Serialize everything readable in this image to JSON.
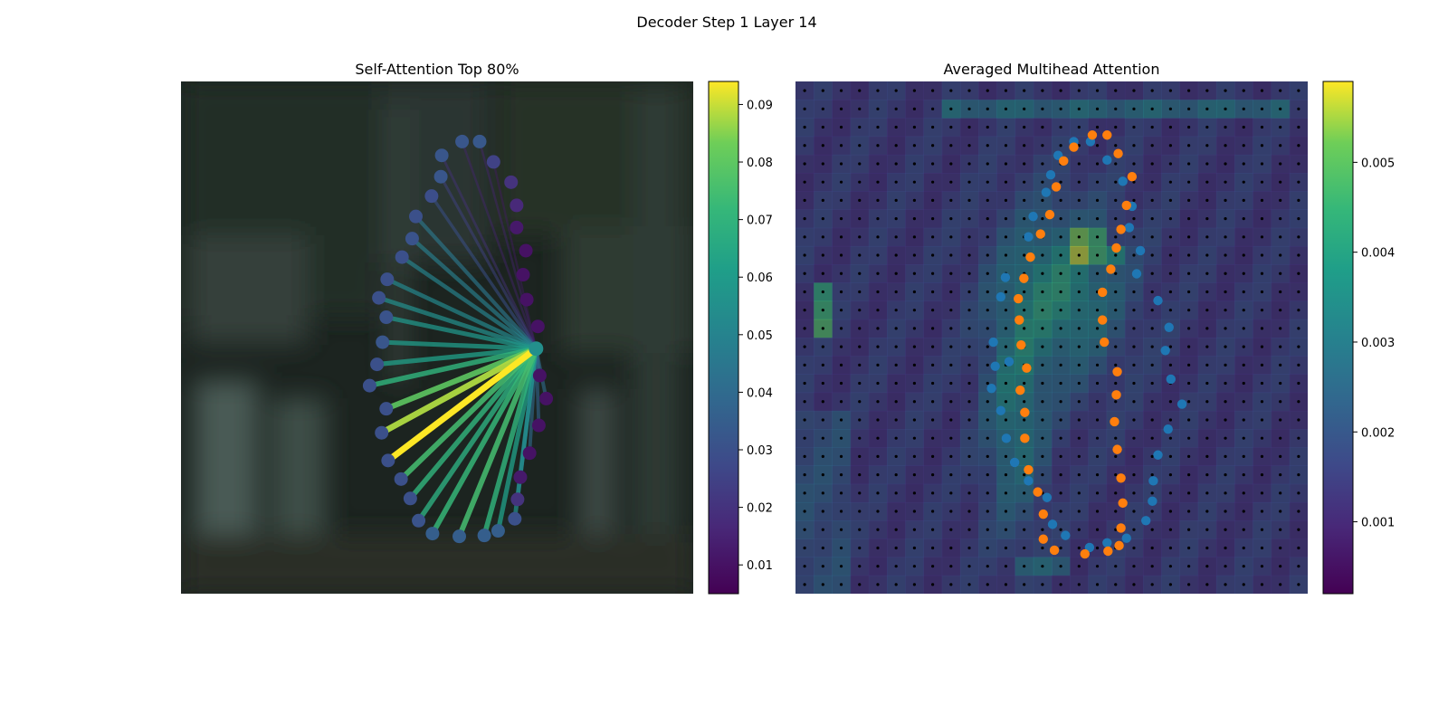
{
  "figure": {
    "suptitle": "Decoder Step 1 Layer 14"
  },
  "chart_data": [
    {
      "type": "scatter",
      "title": "Self-Attention Top 80%",
      "description_points": "contour keypoints with attention lines from one query point",
      "points": [
        [
          500,
          153
        ],
        [
          519,
          153
        ],
        [
          534,
          175
        ],
        [
          478,
          168
        ],
        [
          553,
          197
        ],
        [
          477,
          191
        ],
        [
          559,
          222
        ],
        [
          467,
          212
        ],
        [
          559,
          246
        ],
        [
          450,
          234
        ],
        [
          569,
          271
        ],
        [
          446,
          258
        ],
        [
          566,
          297
        ],
        [
          435,
          278
        ],
        [
          570,
          324
        ],
        [
          419,
          302
        ],
        [
          582,
          353
        ],
        [
          410,
          322
        ],
        [
          418,
          343
        ],
        [
          580,
          377
        ],
        [
          414,
          370
        ],
        [
          408,
          394
        ],
        [
          584,
          406
        ],
        [
          400,
          417
        ],
        [
          591,
          431
        ],
        [
          418,
          442
        ],
        [
          583,
          460
        ],
        [
          413,
          468
        ],
        [
          573,
          490
        ],
        [
          420,
          498
        ],
        [
          563,
          516
        ],
        [
          434,
          518
        ],
        [
          560,
          540
        ],
        [
          444,
          539
        ],
        [
          557,
          561
        ],
        [
          453,
          563
        ],
        [
          539,
          574
        ],
        [
          468,
          577
        ],
        [
          524,
          579
        ],
        [
          497,
          580
        ]
      ],
      "weights": [
        0.032,
        0.033,
        0.025,
        0.032,
        0.02,
        0.032,
        0.017,
        0.029,
        0.012,
        0.03,
        0.01,
        0.031,
        0.01,
        0.03,
        0.01,
        0.03,
        0.01,
        0.03,
        0.031,
        0.055,
        0.032,
        0.03,
        0.01,
        0.03,
        0.01,
        0.03,
        0.01,
        0.03,
        0.01,
        0.03,
        0.012,
        0.03,
        0.02,
        0.03,
        0.03,
        0.031,
        0.035,
        0.035,
        0.035,
        0.035
      ],
      "query_index": 19,
      "line_weights": {
        "3": 0.02,
        "5": 0.025,
        "7": 0.03,
        "9": 0.045,
        "11": 0.048,
        "13": 0.05,
        "15": 0.052,
        "17": 0.055,
        "18": 0.058,
        "20": 0.06,
        "21": 0.062,
        "23": 0.07,
        "25": 0.08,
        "27": 0.088,
        "29": 0.094,
        "31": 0.075,
        "33": 0.07,
        "35": 0.068,
        "37": 0.072,
        "39": 0.075,
        "38": 0.07,
        "36": 0.062,
        "34": 0.055,
        "32": 0.05,
        "30": 0.04,
        "28": 0.04,
        "26": 0.038,
        "24": 0.04,
        "22": 0.04,
        "1": 0.015,
        "0": 0.015,
        "2": 0.012
      },
      "colorbar": {
        "min": 0.005,
        "max": 0.094,
        "ticks": [
          0.01,
          0.02,
          0.03,
          0.04,
          0.05,
          0.06,
          0.07,
          0.08,
          0.09
        ]
      }
    },
    {
      "type": "heatmap",
      "title": "Averaged Multihead Attention",
      "grid": [
        28,
        28
      ],
      "colorbar": {
        "min": 0.0002,
        "max": 0.0059,
        "ticks": [
          0.001,
          0.002,
          0.003,
          0.004,
          0.005
        ]
      },
      "series": [
        {
          "name": "",
          "color": "#1f77b4",
          "points": [
            [
              1163,
              153
            ],
            [
              1181,
              153
            ],
            [
              1146,
              168
            ],
            [
              1199,
              173
            ],
            [
              1138,
              189
            ],
            [
              1216,
              196
            ],
            [
              1133,
              208
            ],
            [
              1226,
              223
            ],
            [
              1119,
              234
            ],
            [
              1223,
              246
            ],
            [
              1114,
              256
            ],
            [
              1235,
              271
            ],
            [
              1231,
              296
            ],
            [
              1089,
              300
            ],
            [
              1084,
              321
            ],
            [
              1254,
              325
            ],
            [
              1266,
              354
            ],
            [
              1076,
              370
            ],
            [
              1262,
              379
            ],
            [
              1093,
              391
            ],
            [
              1078,
              396
            ],
            [
              1268,
              410
            ],
            [
              1074,
              420
            ],
            [
              1280,
              437
            ],
            [
              1084,
              444
            ],
            [
              1265,
              464
            ],
            [
              1090,
              474
            ],
            [
              1254,
              492
            ],
            [
              1099,
              500
            ],
            [
              1249,
              520
            ],
            [
              1114,
              520
            ],
            [
              1134,
              538
            ],
            [
              1248,
              542
            ],
            [
              1241,
              563
            ],
            [
              1140,
              567
            ],
            [
              1220,
              582
            ],
            [
              1154,
              579
            ],
            [
              1199,
              587
            ],
            [
              1180,
              592
            ]
          ]
        },
        {
          "name": "",
          "color": "#ff7f0e",
          "points": [
            [
              1183,
              146
            ],
            [
              1199,
              146
            ],
            [
              1163,
              159
            ],
            [
              1211,
              166
            ],
            [
              1152,
              174
            ],
            [
              1226,
              191
            ],
            [
              1144,
              202
            ],
            [
              1220,
              222
            ],
            [
              1137,
              232
            ],
            [
              1214,
              248
            ],
            [
              1127,
              253
            ],
            [
              1209,
              268
            ],
            [
              1116,
              278
            ],
            [
              1203,
              291
            ],
            [
              1109,
              301
            ],
            [
              1194,
              316
            ],
            [
              1103,
              323
            ],
            [
              1194,
              346
            ],
            [
              1104,
              346
            ],
            [
              1196,
              370
            ],
            [
              1106,
              373
            ],
            [
              1112,
              398
            ],
            [
              1210,
              402
            ],
            [
              1105,
              422
            ],
            [
              1209,
              427
            ],
            [
              1110,
              446
            ],
            [
              1207,
              456
            ],
            [
              1110,
              474
            ],
            [
              1210,
              486
            ],
            [
              1114,
              508
            ],
            [
              1214,
              517
            ],
            [
              1124,
              532
            ],
            [
              1216,
              544
            ],
            [
              1130,
              556
            ],
            [
              1214,
              571
            ],
            [
              1130,
              583
            ],
            [
              1142,
              595
            ],
            [
              1175,
              599
            ],
            [
              1200,
              596
            ],
            [
              1212,
              590
            ]
          ]
        }
      ]
    }
  ]
}
